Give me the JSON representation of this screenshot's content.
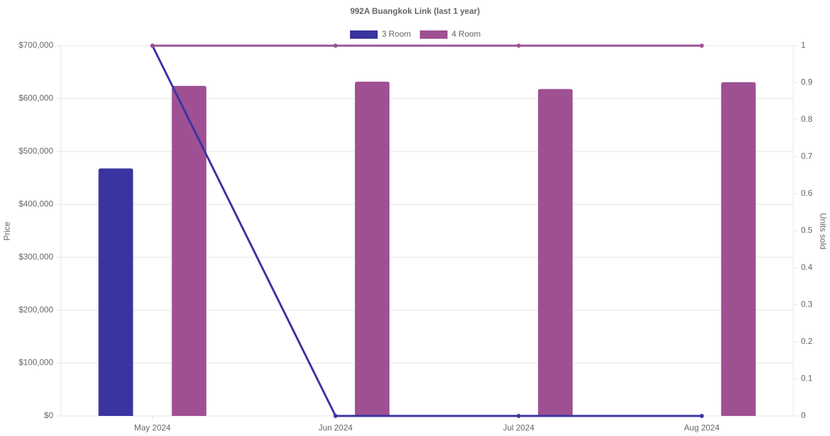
{
  "chart_data": {
    "type": "bar",
    "title": "992A Buangkok Link (last 1 year)",
    "categories": [
      "May 2024",
      "Jun 2024",
      "Jul 2024",
      "Aug 2024"
    ],
    "series": [
      {
        "name": "3 Room",
        "color": "#3a34a0",
        "values": [
          468000,
          null,
          null,
          null
        ],
        "units": [
          1,
          0,
          0,
          0
        ]
      },
      {
        "name": "4 Room",
        "color": "#9e5093",
        "values": [
          624000,
          632000,
          618000,
          631000
        ],
        "units": [
          1,
          1,
          1,
          1
        ]
      }
    ],
    "y_label": "Price",
    "y2_label": "Units sold",
    "ylim": [
      0,
      700000
    ],
    "yticks": [
      {
        "value": 0,
        "label": "$0"
      },
      {
        "value": 100000,
        "label": "$100,000"
      },
      {
        "value": 200000,
        "label": "$200,000"
      },
      {
        "value": 300000,
        "label": "$300,000"
      },
      {
        "value": 400000,
        "label": "$400,000"
      },
      {
        "value": 500000,
        "label": "$500,000"
      },
      {
        "value": 600000,
        "label": "$600,000"
      },
      {
        "value": 700000,
        "label": "$700,000"
      }
    ],
    "y2lim": [
      0,
      1
    ],
    "y2ticks": [
      0,
      0.1,
      0.2,
      0.3,
      0.4,
      0.5,
      0.6,
      0.7,
      0.8,
      0.9,
      1
    ],
    "grid": true
  }
}
